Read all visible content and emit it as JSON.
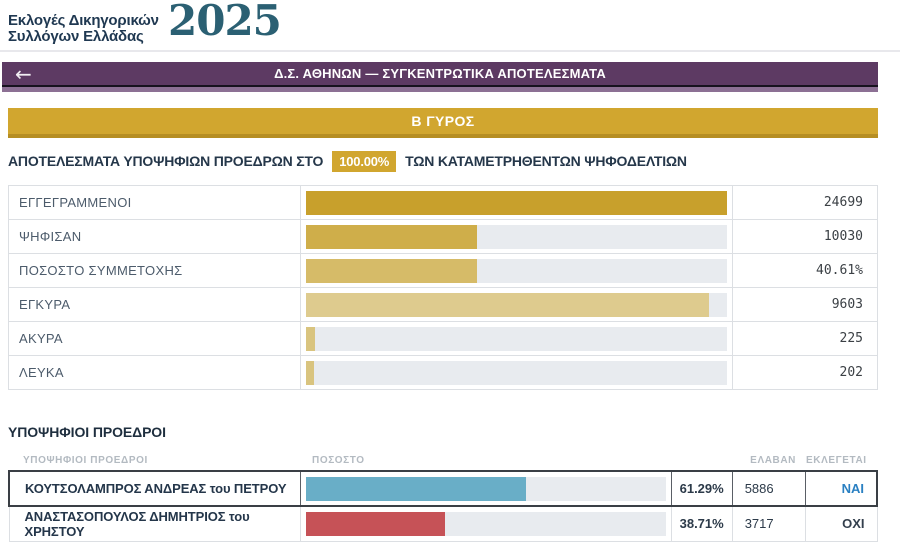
{
  "logo": {
    "title_line1": "Εκλογές Δικηγορικών",
    "title_line2": "Συλλόγων Ελλάδας",
    "year": "2025",
    "year_color": "#2b6073"
  },
  "header": {
    "back_icon": "←",
    "title": "Δ.Σ. ΑΘΗΝΩΝ — ΣΥΓΚΕΝΤΡΩΤΙΚΑ ΑΠΟΤΕΛΕΣΜΑΤΑ",
    "background_color": "#5d3a63"
  },
  "round_banner": {
    "label": "Β ΓΥΡΟΣ",
    "background_color": "#d1a62f"
  },
  "results_line": {
    "prefix": "ΑΠΟΤΕΛΕΣΜΑΤΑ ΥΠΟΨΗΦΙΩΝ ΠΡΟΕΔΡΩΝ ΣΤΟ",
    "percent_badge": "100.00%",
    "suffix": "ΤΩΝ ΚΑΤΑΜΕΤΡΗΘΕΝΤΩΝ ΨΗΦΟΔΕΛΤΙΩΝ"
  },
  "stats": {
    "track_color": "#e8ebef",
    "rows": [
      {
        "label": "ΕΓΓΕΓΡΑΜΜΕΝΟΙ",
        "value": "24699",
        "bar_width": "100%",
        "bar_color": "#c8a02c"
      },
      {
        "label": "ΨΗΦΙΣΑΝ",
        "value": "10030",
        "bar_width": "40.61%",
        "bar_color": "#cfae4a"
      },
      {
        "label": "ΠΟΣΟΣΤΟ ΣΥΜΜΕΤΟΧΗΣ",
        "value": "40.61%",
        "bar_width": "40.61%",
        "bar_color": "#d6bb68"
      },
      {
        "label": "ΕΓΚΥΡΑ",
        "value": "9603",
        "bar_width": "95.74%",
        "bar_color": "#decb8e"
      },
      {
        "label": "ΑΚΥΡΑ",
        "value": "225",
        "bar_width": "2.24%",
        "bar_color": "#d9c47f"
      },
      {
        "label": "ΛΕΥΚΑ",
        "value": "202",
        "bar_width": "2.01%",
        "bar_color": "#d9c47f"
      }
    ]
  },
  "candidates": {
    "section_title": "ΥΠΟΨΗΦΙΟΙ ΠΡΟΕΔΡΟΙ",
    "headers": {
      "name": "ΥΠΟΨΗΦΙΟΙ ΠΡΟΕΔΡΟΙ",
      "percent": "ΠΟΣΟΣΤΟ",
      "received": "ΕΛΑΒΑΝ",
      "elected": "ΕΚΛΕΓΕΤΑΙ"
    },
    "rows": [
      {
        "name": "ΚΟΥΤΣΟΛΑΜΠΡΟΣ ΑΝΔΡΕΑΣ του ΠΕΤΡΟΥ",
        "percent": "61.29%",
        "votes": "5886",
        "elected": "ΝΑΙ",
        "elected_color": "#2a80c2",
        "bar_width": "61.29%",
        "bar_color": "#69aec7"
      },
      {
        "name": "ΑΝΑΣΤΑΣΟΠΟΥΛΟΣ ΔΗΜΗΤΡΙΟΣ του ΧΡΗΣΤΟΥ",
        "percent": "38.71%",
        "votes": "3717",
        "elected": "ΟΧΙ",
        "elected_color": "#333f4d",
        "bar_width": "38.71%",
        "bar_color": "#c65257"
      }
    ]
  },
  "chart_data": [
    {
      "type": "bar",
      "title": "ΑΠΟΤΕΛΕΣΜΑΤΑ ΥΠΟΨΗΦΙΩΝ ΠΡΟΕΔΡΩΝ ΣΤΟ 100.00% ΤΩΝ ΚΑΤΑΜΕΤΡΗΘΕΝΤΩΝ ΨΗΦΟΔΕΛΤΙΩΝ",
      "orientation": "horizontal",
      "categories": [
        "ΕΓΓΕΓΡΑΜΜΕΝΟΙ",
        "ΨΗΦΙΣΑΝ",
        "ΠΟΣΟΣΤΟ ΣΥΜΜΕΤΟΧΗΣ",
        "ΕΓΚΥΡΑ",
        "ΑΚΥΡΑ",
        "ΛΕΥΚΑ"
      ],
      "values": [
        24699,
        10030,
        40.61,
        9603,
        225,
        202
      ],
      "value_labels": [
        "24699",
        "10030",
        "40.61%",
        "9603",
        "225",
        "202"
      ],
      "bar_fill_percent": [
        100,
        40.61,
        40.61,
        95.74,
        2.24,
        2.01
      ]
    },
    {
      "type": "bar",
      "title": "ΥΠΟΨΗΦΙΟΙ ΠΡΟΕΔΡΟΙ",
      "orientation": "horizontal",
      "categories": [
        "ΚΟΥΤΣΟΛΑΜΠΡΟΣ ΑΝΔΡΕΑΣ του ΠΕΤΡΟΥ",
        "ΑΝΑΣΤΑΣΟΠΟΥΛΟΣ ΔΗΜΗΤΡΙΟΣ του ΧΡΗΣΤΟΥ"
      ],
      "values": [
        61.29,
        38.71
      ],
      "votes": [
        5886,
        3717
      ],
      "elected": [
        "ΝΑΙ",
        "ΟΧΙ"
      ]
    }
  ]
}
